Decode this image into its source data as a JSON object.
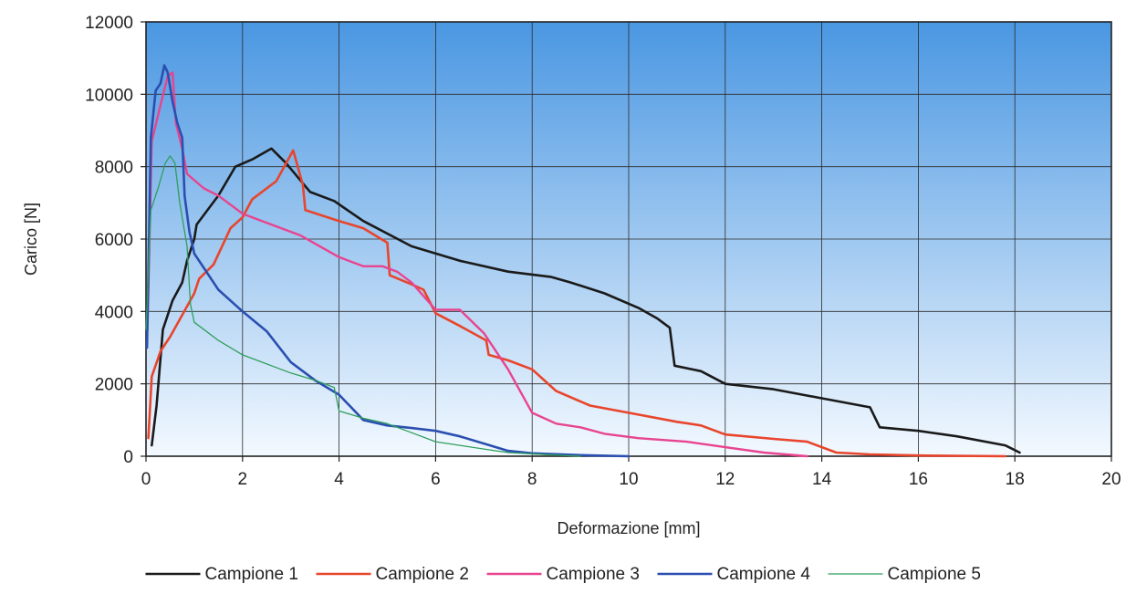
{
  "chart_data": {
    "type": "line",
    "title": "",
    "xlabel": "Deformazione [mm]",
    "ylabel": "Carico [N]",
    "xlim": [
      0,
      20
    ],
    "ylim": [
      0,
      12000
    ],
    "x_ticks": [
      "0",
      "2",
      "4",
      "6",
      "8",
      "10",
      "12",
      "14",
      "16",
      "18",
      "20"
    ],
    "y_ticks": [
      "0",
      "2000",
      "4000",
      "6000",
      "8000",
      "10000",
      "12000"
    ],
    "grid": true,
    "legend_position": "bottom",
    "plot_background": {
      "top": "#4a97e2",
      "bottom": "#f3f9ff"
    },
    "series": [
      {
        "name": "Campione 1",
        "color": "#1a1a1a",
        "width": 2.6,
        "points": [
          [
            0.12,
            300
          ],
          [
            0.22,
            1400
          ],
          [
            0.35,
            3500
          ],
          [
            0.55,
            4300
          ],
          [
            0.75,
            4800
          ],
          [
            0.85,
            5400
          ],
          [
            1.0,
            6000
          ],
          [
            1.05,
            6400
          ],
          [
            1.5,
            7200
          ],
          [
            1.85,
            8000
          ],
          [
            2.2,
            8200
          ],
          [
            2.6,
            8500
          ],
          [
            2.9,
            8100
          ],
          [
            3.4,
            7300
          ],
          [
            3.9,
            7050
          ],
          [
            4.5,
            6500
          ],
          [
            5.5,
            5800
          ],
          [
            6.5,
            5400
          ],
          [
            7.5,
            5100
          ],
          [
            8.4,
            4950
          ],
          [
            8.8,
            4800
          ],
          [
            9.5,
            4500
          ],
          [
            10.2,
            4100
          ],
          [
            10.6,
            3800
          ],
          [
            10.85,
            3550
          ],
          [
            10.95,
            2500
          ],
          [
            11.5,
            2350
          ],
          [
            12.0,
            2000
          ],
          [
            13.0,
            1850
          ],
          [
            14.0,
            1600
          ],
          [
            15.0,
            1350
          ],
          [
            15.2,
            800
          ],
          [
            16.0,
            700
          ],
          [
            16.8,
            550
          ],
          [
            17.8,
            300
          ],
          [
            18.1,
            100
          ]
        ]
      },
      {
        "name": "Campione 2",
        "color": "#e8452c",
        "width": 2.6,
        "points": [
          [
            0.05,
            500
          ],
          [
            0.12,
            2200
          ],
          [
            0.3,
            2900
          ],
          [
            0.5,
            3300
          ],
          [
            0.75,
            3900
          ],
          [
            1.0,
            4500
          ],
          [
            1.1,
            4900
          ],
          [
            1.4,
            5300
          ],
          [
            1.75,
            6300
          ],
          [
            2.0,
            6600
          ],
          [
            2.2,
            7100
          ],
          [
            2.7,
            7600
          ],
          [
            3.05,
            8450
          ],
          [
            3.25,
            7500
          ],
          [
            3.3,
            6800
          ],
          [
            4.0,
            6500
          ],
          [
            4.5,
            6300
          ],
          [
            5.0,
            5900
          ],
          [
            5.05,
            5000
          ],
          [
            5.5,
            4750
          ],
          [
            5.75,
            4600
          ],
          [
            6.0,
            3950
          ],
          [
            6.5,
            3600
          ],
          [
            7.05,
            3200
          ],
          [
            7.1,
            2800
          ],
          [
            7.5,
            2650
          ],
          [
            8.0,
            2400
          ],
          [
            8.5,
            1800
          ],
          [
            9.2,
            1400
          ],
          [
            10.0,
            1200
          ],
          [
            11.0,
            950
          ],
          [
            11.5,
            850
          ],
          [
            12.0,
            600
          ],
          [
            13.0,
            480
          ],
          [
            13.7,
            400
          ],
          [
            14.3,
            100
          ],
          [
            15.0,
            50
          ],
          [
            16.0,
            20
          ],
          [
            17.8,
            0
          ]
        ]
      },
      {
        "name": "Campione 3",
        "color": "#e8448f",
        "width": 2.4,
        "points": [
          [
            0.03,
            3500
          ],
          [
            0.12,
            8700
          ],
          [
            0.3,
            9700
          ],
          [
            0.45,
            10500
          ],
          [
            0.55,
            10600
          ],
          [
            0.62,
            9200
          ],
          [
            0.75,
            8500
          ],
          [
            0.85,
            7800
          ],
          [
            1.2,
            7400
          ],
          [
            1.5,
            7200
          ],
          [
            2.0,
            6700
          ],
          [
            2.6,
            6400
          ],
          [
            3.2,
            6100
          ],
          [
            3.6,
            5800
          ],
          [
            4.0,
            5500
          ],
          [
            4.5,
            5250
          ],
          [
            4.9,
            5250
          ],
          [
            5.2,
            5100
          ],
          [
            5.5,
            4800
          ],
          [
            6.0,
            4050
          ],
          [
            6.5,
            4050
          ],
          [
            7.0,
            3400
          ],
          [
            7.5,
            2400
          ],
          [
            8.0,
            1200
          ],
          [
            8.5,
            900
          ],
          [
            9.0,
            800
          ],
          [
            9.5,
            620
          ],
          [
            10.2,
            500
          ],
          [
            11.2,
            400
          ],
          [
            12.0,
            250
          ],
          [
            12.8,
            100
          ],
          [
            13.7,
            0
          ]
        ]
      },
      {
        "name": "Campione 4",
        "color": "#2a4fb0",
        "width": 2.6,
        "points": [
          [
            0.02,
            3000
          ],
          [
            0.1,
            8800
          ],
          [
            0.2,
            10100
          ],
          [
            0.3,
            10300
          ],
          [
            0.38,
            10800
          ],
          [
            0.45,
            10600
          ],
          [
            0.55,
            9800
          ],
          [
            0.65,
            9200
          ],
          [
            0.75,
            8800
          ],
          [
            0.8,
            7200
          ],
          [
            0.9,
            6200
          ],
          [
            1.0,
            5600
          ],
          [
            1.5,
            4600
          ],
          [
            2.0,
            4000
          ],
          [
            2.5,
            3450
          ],
          [
            3.0,
            2600
          ],
          [
            3.5,
            2100
          ],
          [
            4.0,
            1700
          ],
          [
            4.5,
            1000
          ],
          [
            5.0,
            850
          ],
          [
            5.5,
            780
          ],
          [
            6.0,
            700
          ],
          [
            6.5,
            550
          ],
          [
            7.0,
            350
          ],
          [
            7.5,
            150
          ],
          [
            8.0,
            80
          ],
          [
            9.0,
            30
          ],
          [
            10.0,
            0
          ]
        ]
      },
      {
        "name": "Campione 5",
        "color": "#2e9e5b",
        "width": 1.3,
        "points": [
          [
            0.0,
            3500
          ],
          [
            0.1,
            6800
          ],
          [
            0.25,
            7400
          ],
          [
            0.4,
            8100
          ],
          [
            0.5,
            8300
          ],
          [
            0.6,
            8100
          ],
          [
            0.7,
            7000
          ],
          [
            0.85,
            5800
          ],
          [
            0.92,
            4200
          ],
          [
            1.0,
            3700
          ],
          [
            1.5,
            3200
          ],
          [
            2.0,
            2800
          ],
          [
            3.0,
            2300
          ],
          [
            3.5,
            2100
          ],
          [
            3.9,
            1900
          ],
          [
            4.0,
            1250
          ],
          [
            4.5,
            1050
          ],
          [
            5.0,
            900
          ],
          [
            5.5,
            650
          ],
          [
            6.0,
            400
          ],
          [
            7.0,
            200
          ],
          [
            7.5,
            100
          ],
          [
            8.5,
            30
          ],
          [
            9.0,
            0
          ]
        ]
      }
    ]
  }
}
